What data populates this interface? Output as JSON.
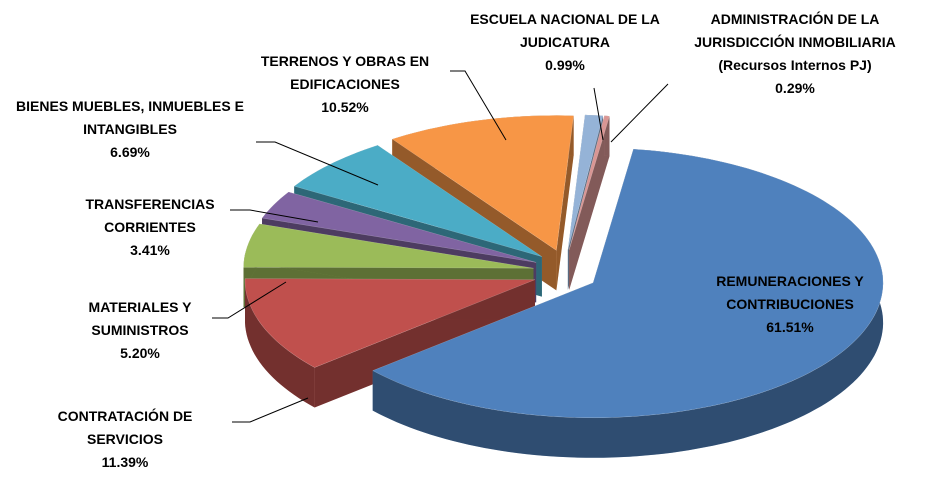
{
  "chart_data": {
    "type": "pie",
    "categories": [
      "REMUNERACIONES Y CONTRIBUCIONES",
      "CONTRATACIÓN DE SERVICIOS",
      "MATERIALES Y SUMINISTROS",
      "TRANSFERENCIAS CORRIENTES",
      "BIENES MUEBLES, INMUEBLES E INTANGIBLES",
      "TERRENOS Y OBRAS EN EDIFICACIONES",
      "ESCUELA NACIONAL DE LA JUDICATURA",
      "ADMINISTRACIÓN DE LA JURISDICCIÓN INMOBILIARIA (Recursos Internos PJ)"
    ],
    "values": [
      61.51,
      11.39,
      5.2,
      3.41,
      6.69,
      10.52,
      0.99,
      0.29
    ],
    "value_labels": [
      "61.51%",
      "11.39%",
      "5.20%",
      "3.41%",
      "6.69%",
      "10.52%",
      "0.99%",
      "0.29%"
    ],
    "colors": [
      "#4f81bd",
      "#c0504d",
      "#9bbb59",
      "#8064a2",
      "#4bacc6",
      "#f79646",
      "#95b3d7",
      "#d99694"
    ]
  }
}
